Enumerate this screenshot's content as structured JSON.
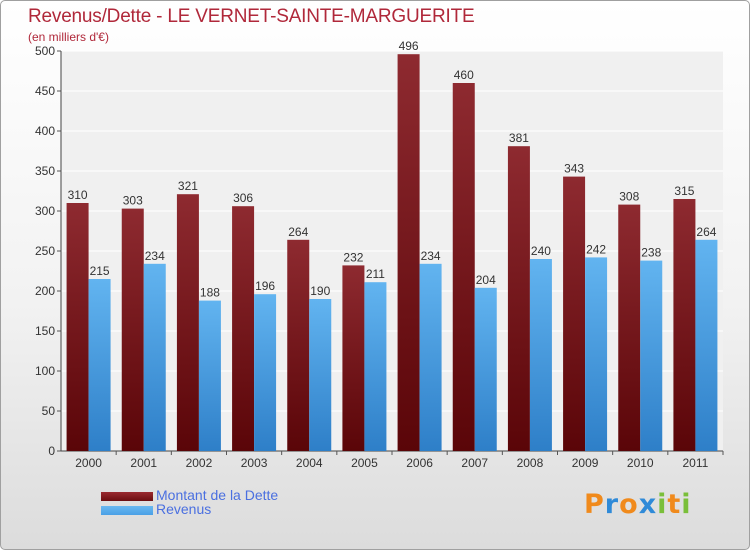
{
  "title": "Revenus/Dette - LE VERNET-SAINTE-MARGUERITE",
  "subtitle": "(en milliers d'€)",
  "logo": {
    "text": "Proxiti",
    "letters": [
      "P",
      "r",
      "o",
      "x",
      "i",
      "t",
      "i"
    ],
    "colors": [
      "#f08a1c",
      "#2f8ad8",
      "#f08a1c",
      "#2f8ad8",
      "#7abf3a",
      "#f08a1c",
      "#7abf3a"
    ]
  },
  "legend": [
    {
      "label": "Montant de la Dette",
      "color": "#6b0d10"
    },
    {
      "label": "Revenus",
      "color": "#4aa0e6"
    }
  ],
  "chart_data": {
    "type": "bar",
    "title": "Revenus/Dette - LE VERNET-SAINTE-MARGUERITE",
    "ylabel": "(en milliers d'€)",
    "xlabel": "",
    "categories": [
      "2000",
      "2001",
      "2002",
      "2003",
      "2004",
      "2005",
      "2006",
      "2007",
      "2008",
      "2009",
      "2010",
      "2011"
    ],
    "series": [
      {
        "name": "Montant de la Dette",
        "color": "#7d1a1f",
        "values": [
          310,
          303,
          321,
          306,
          264,
          232,
          496,
          460,
          381,
          343,
          308,
          315
        ]
      },
      {
        "name": "Revenus",
        "color": "#4aa0e6",
        "values": [
          215,
          234,
          188,
          196,
          190,
          211,
          234,
          204,
          240,
          242,
          238,
          264
        ]
      }
    ],
    "ylim": [
      0,
      500
    ],
    "yticks": [
      0,
      50,
      100,
      150,
      200,
      250,
      300,
      350,
      400,
      450,
      500
    ],
    "grid": true,
    "legend_position": "bottom-left",
    "data_labels": true
  }
}
